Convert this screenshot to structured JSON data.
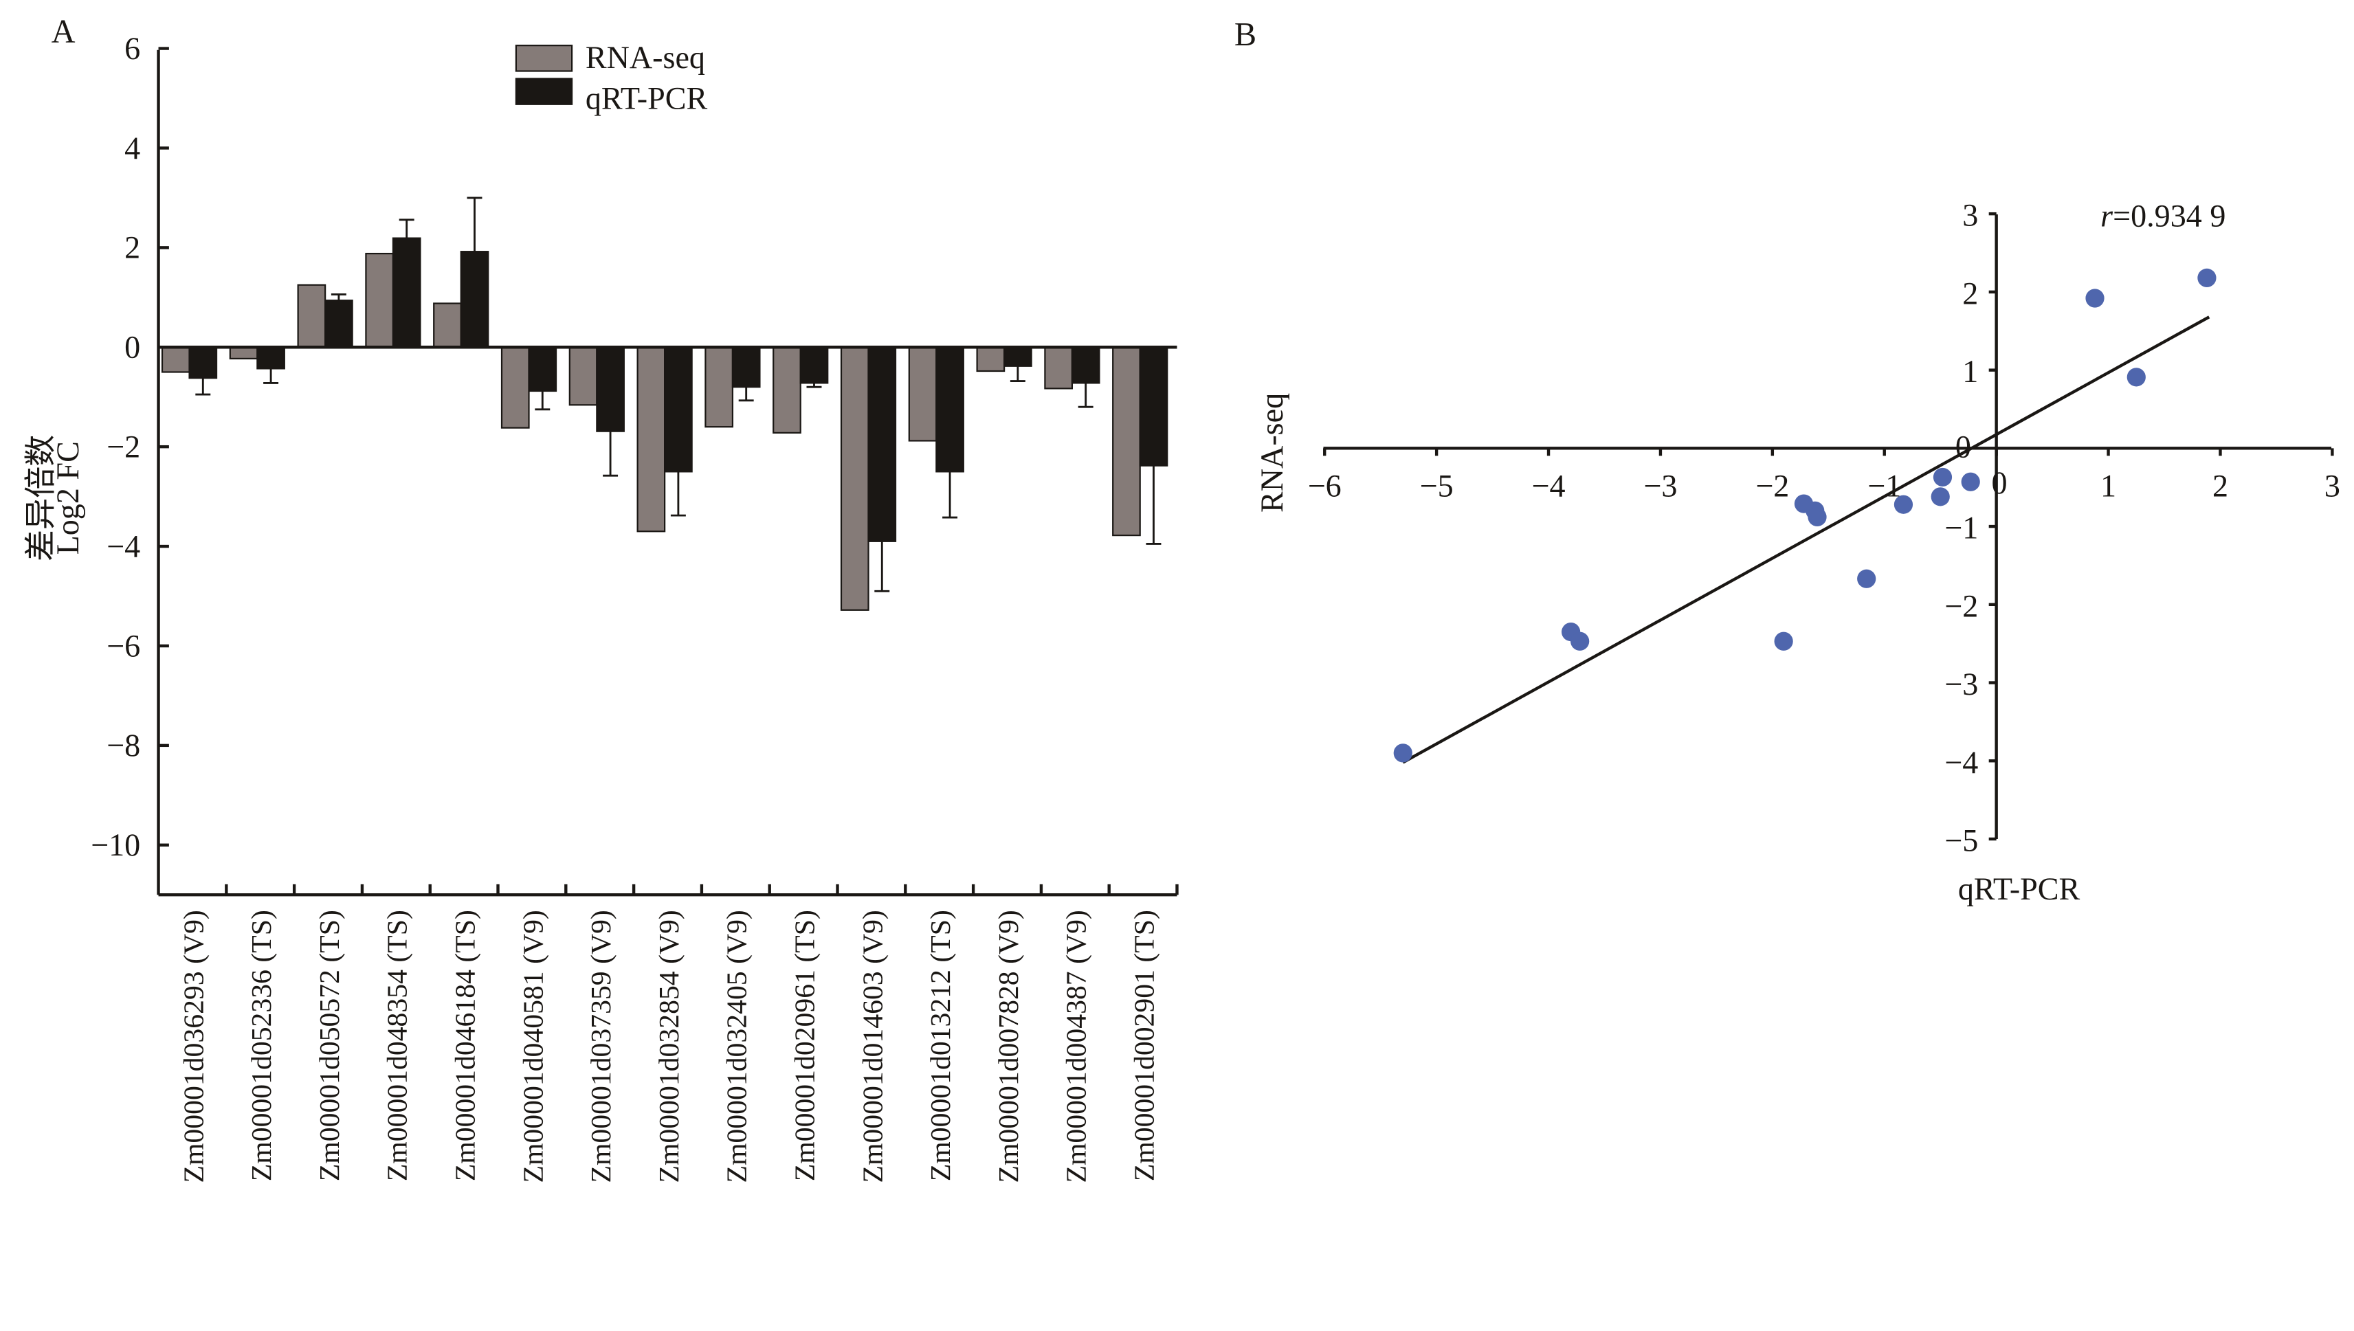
{
  "panels": {
    "a_label": "A",
    "b_label": "B"
  },
  "colors": {
    "rna_seq": "#857b78",
    "qrt_pcr": "#1a1714",
    "scatter_point": "#4f66ad",
    "axis": "#1a1714"
  },
  "chart_data": [
    {
      "type": "bar",
      "panel": "A",
      "title": "",
      "xlabel": "",
      "ylabel_line1": "差异倍数",
      "ylabel_line2": "Log2 FC",
      "ylim": [
        -11,
        6
      ],
      "yticks": [
        6,
        4,
        2,
        0,
        -2,
        -4,
        -6,
        -8,
        -10
      ],
      "ytick_labels": [
        "6",
        "4",
        "2",
        "0",
        "−2",
        "−4",
        "−6",
        "−8",
        "−10"
      ],
      "legend": {
        "position": "top-center",
        "entries": [
          "RNA-seq",
          "qRT-PCR"
        ]
      },
      "categories": [
        "Zm00001d036293 (V9)",
        "Zm00001d052336 (TS)",
        "Zm00001d050572 (TS)",
        "Zm00001d048354 (TS)",
        "Zm00001d046184 (TS)",
        "Zm00001d040581 (V9)",
        "Zm00001d037359 (V9)",
        "Zm00001d032854 (V9)",
        "Zm00001d032405 (V9)",
        "Zm00001d020961 (TS)",
        "Zm00001d014603 (V9)",
        "Zm00001d013212 (TS)",
        "Zm00001d007828 (V9)",
        "Zm00001d004387 (V9)",
        "Zm00001d002901 (TS)"
      ],
      "series": [
        {
          "name": "RNA-seq",
          "values": [
            -0.5,
            -0.23,
            1.25,
            1.88,
            0.88,
            -1.62,
            -1.16,
            -3.7,
            -1.6,
            -1.72,
            -5.28,
            -1.88,
            -0.48,
            -0.83,
            -3.78
          ]
        },
        {
          "name": "qRT-PCR",
          "values": [
            -0.62,
            -0.43,
            0.94,
            2.19,
            1.92,
            -0.88,
            -1.69,
            -2.5,
            -0.8,
            -0.72,
            -3.9,
            -2.5,
            -0.38,
            -0.72,
            -2.38
          ],
          "error": [
            0.33,
            0.29,
            0.12,
            0.37,
            1.08,
            0.37,
            0.89,
            0.88,
            0.27,
            0.08,
            1.0,
            0.92,
            0.3,
            0.48,
            1.57
          ]
        }
      ]
    },
    {
      "type": "scatter",
      "panel": "B",
      "xlabel": "qRT-PCR",
      "ylabel": "RNA-seq",
      "xlim": [
        -6,
        3
      ],
      "ylim": [
        -5,
        3
      ],
      "xticks": [
        -6,
        -5,
        -4,
        -3,
        -2,
        -1,
        0,
        1,
        2,
        3
      ],
      "xtick_labels": [
        "−6",
        "−5",
        "−4",
        "−3",
        "−2",
        "−1",
        "0",
        "1",
        "2",
        "3"
      ],
      "yticks": [
        3,
        2,
        1,
        -1,
        -2,
        -3,
        -4,
        -5
      ],
      "ytick_labels": [
        "3",
        "2",
        "1",
        "−1",
        "−2",
        "−3",
        "−4",
        "−5"
      ],
      "annotation": {
        "italic": "r",
        "text": "=0.934 9"
      },
      "points": [
        {
          "x": -5.3,
          "y": -3.9
        },
        {
          "x": -3.8,
          "y": -2.35
        },
        {
          "x": -3.72,
          "y": -2.47
        },
        {
          "x": -1.9,
          "y": -2.47
        },
        {
          "x": -1.72,
          "y": -0.71
        },
        {
          "x": -1.62,
          "y": -0.8
        },
        {
          "x": -1.6,
          "y": -0.88
        },
        {
          "x": -1.16,
          "y": -1.67
        },
        {
          "x": -0.83,
          "y": -0.72
        },
        {
          "x": -0.5,
          "y": -0.62
        },
        {
          "x": -0.48,
          "y": -0.37
        },
        {
          "x": -0.23,
          "y": -0.43
        },
        {
          "x": 0.88,
          "y": 1.92
        },
        {
          "x": 1.25,
          "y": 0.91
        },
        {
          "x": 1.88,
          "y": 2.18
        }
      ],
      "trendline": {
        "x": [
          -5.3,
          1.9
        ],
        "y": [
          -4.02,
          1.68
        ]
      }
    }
  ]
}
